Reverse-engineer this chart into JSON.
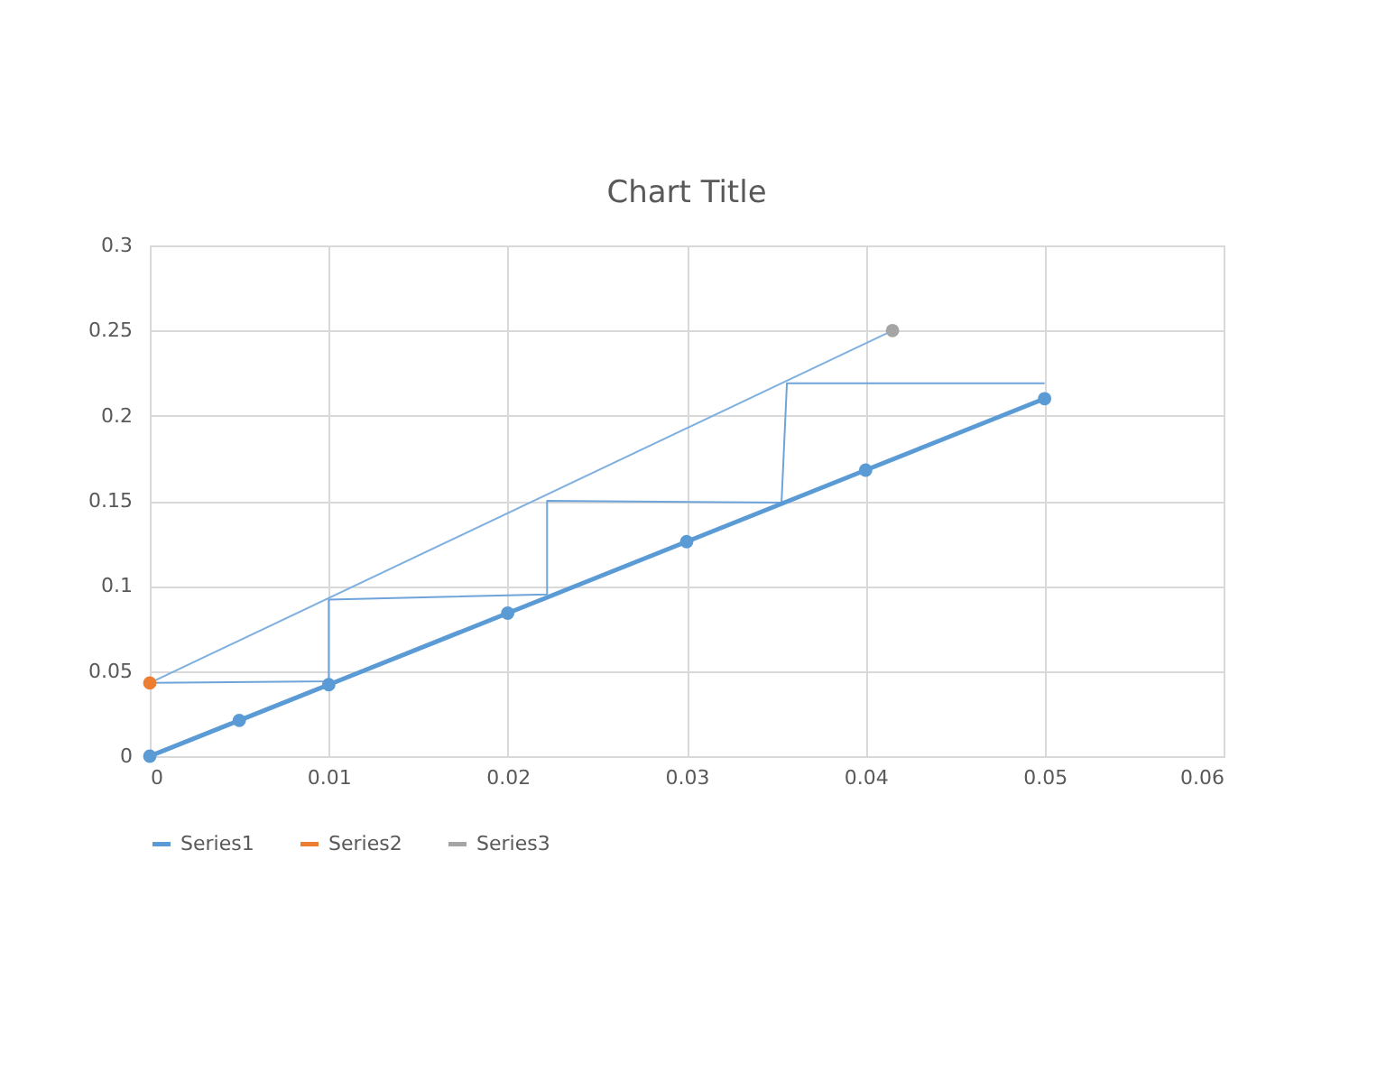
{
  "chart_data": {
    "type": "line",
    "title": "Chart Title",
    "xlim": [
      0,
      0.06
    ],
    "xticks": [
      0,
      0.01,
      0.02,
      0.03,
      0.04,
      0.05,
      0.06
    ],
    "ylim": [
      0,
      0.3
    ],
    "yticks": [
      0,
      0.05,
      0.1,
      0.15,
      0.2,
      0.25,
      0.3
    ],
    "grid": true,
    "legend": "bottom",
    "marker": "circle",
    "line_style": "solid",
    "series": [
      {
        "color": "#7fb0e0",
        "marker": "none",
        "x": [
          0,
          0.0415
        ],
        "values": [
          0.043,
          0.25
        ]
      },
      {
        "color": "#6fa4da",
        "marker": "none",
        "x": [
          0,
          0.01,
          0.01,
          0.0222,
          0.0222,
          0.0353,
          0.0356,
          0.05
        ],
        "values": [
          0.043,
          0.044,
          0.092,
          0.095,
          0.15,
          0.149,
          0.219,
          0.219
        ]
      },
      {
        "name": "Series1",
        "color": "#5b9bd5",
        "x": [
          0,
          0.005,
          0.01,
          0.02,
          0.03,
          0.04,
          0.05
        ],
        "values": [
          0,
          0.021,
          0.042,
          0.084,
          0.126,
          0.168,
          0.21
        ]
      },
      {
        "name": "Series2",
        "color": "#ed7d31",
        "x": [
          0
        ],
        "values": [
          0.043
        ]
      },
      {
        "name": "Series3",
        "color": "#a5a5a5",
        "x": [
          0.0415
        ],
        "values": [
          0.25
        ]
      }
    ]
  }
}
